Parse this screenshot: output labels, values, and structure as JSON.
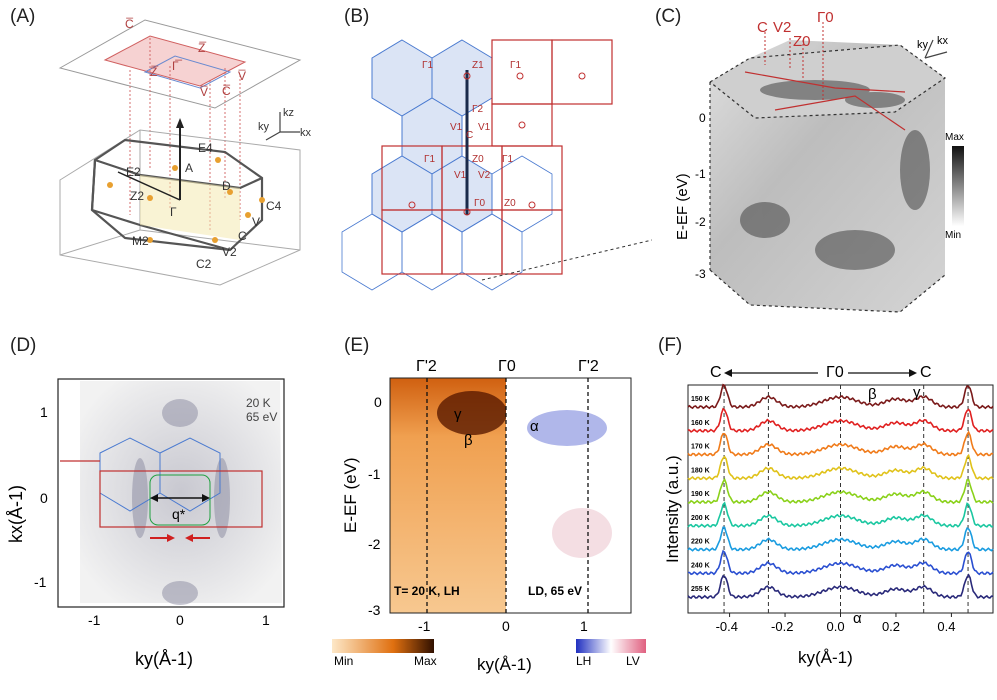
{
  "panels": {
    "A": {
      "label": "(A)",
      "points": [
        "Z̅",
        "Γ̅",
        "Z̅",
        "C̅",
        "C̅",
        "V̅",
        "V̅",
        "E4",
        "A",
        "E2",
        "D",
        "Z2",
        "Γ",
        "C4",
        "M2",
        "C",
        "V",
        "V2",
        "C2"
      ],
      "axes": [
        "ky",
        "kz",
        "kx"
      ]
    },
    "B": {
      "label": "(B)",
      "points": [
        "Γ1",
        "Z1",
        "Γ1",
        "Γ2",
        "V1",
        "C",
        "V1",
        "Γ1",
        "Z0",
        "Γ1",
        "V1",
        "V2",
        "Γ0",
        "Z0"
      ]
    },
    "C": {
      "label": "(C)",
      "top_labels": [
        "C",
        "V2",
        "Z0",
        "Γ0"
      ],
      "axes": [
        "ky",
        "kx"
      ],
      "ylabel": "E-EF (eV)",
      "yticks": [
        "0",
        "-1",
        "-2",
        "-3"
      ],
      "colorbar": [
        "Max",
        "Min"
      ]
    },
    "D": {
      "label": "(D)",
      "xlabel": "ky(Å-1)",
      "ylabel": "kx(Å-1)",
      "xticks": [
        "-1",
        "0",
        "1"
      ],
      "yticks": [
        "1",
        "0",
        "-1"
      ],
      "annotation": [
        "20 K",
        "65 eV"
      ],
      "q_label": "q*"
    },
    "E": {
      "label": "(E)",
      "top_labels": [
        "Γ'2",
        "Γ0",
        "Γ'2"
      ],
      "ylabel": "E-EF (eV)",
      "xlabel": "ky(Å-1)",
      "xticks": [
        "-1",
        "0",
        "1"
      ],
      "yticks": [
        "0",
        "-1",
        "-2",
        "-3"
      ],
      "left_note": "T= 20 K, LH",
      "right_note": "LD, 65 eV",
      "band_labels": [
        "γ",
        "β",
        "α"
      ],
      "cbar_left": [
        "Min",
        "Max"
      ],
      "cbar_right": [
        "LH",
        "LV"
      ]
    },
    "F": {
      "label": "(F)",
      "top_labels": [
        "C",
        "Γ0",
        "C"
      ],
      "ylabel": "Intensity (a.u.)",
      "xlabel": "ky(Å-1)",
      "xticks": [
        "-0.4",
        "-0.2",
        "0.0",
        "0.2",
        "0.4"
      ],
      "band_labels": [
        "β",
        "γ",
        "α"
      ]
    }
  },
  "chart_data": {
    "type": "line",
    "xlabel": "ky(Å-1)",
    "ylabel": "Intensity (a.u.)",
    "xlim": [
      -0.55,
      0.55
    ],
    "dashed_x": [
      -0.42,
      -0.26,
      0.0,
      0.3,
      0.46
    ],
    "series": [
      {
        "name": "150 K",
        "color": "#7a1a1a"
      },
      {
        "name": "160 K",
        "color": "#e02020"
      },
      {
        "name": "170 K",
        "color": "#f07b1a"
      },
      {
        "name": "180 K",
        "color": "#e0c21a"
      },
      {
        "name": "190 K",
        "color": "#8ad11a"
      },
      {
        "name": "200 K",
        "color": "#1ac7a0"
      },
      {
        "name": "220 K",
        "color": "#1a9ce0"
      },
      {
        "name": "240 K",
        "color": "#2a4fd1"
      },
      {
        "name": "255 K",
        "color": "#2a2a7a"
      }
    ]
  }
}
